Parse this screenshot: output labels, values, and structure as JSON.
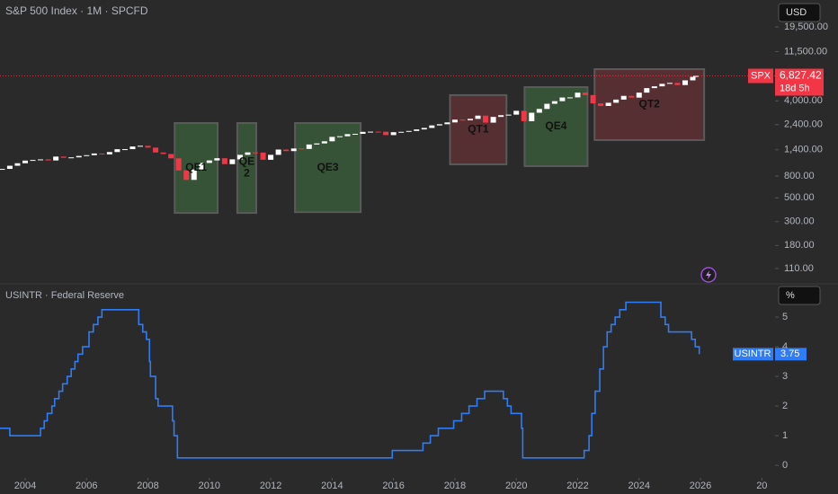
{
  "chart_data": [
    {
      "type": "candlestick",
      "title": "S&P 500 Index · 1M · SPCFD",
      "currency": "USD",
      "log_scale": true,
      "up_color": "#ffffff",
      "down_color": "#f23645",
      "xlim": [
        2003.18,
        2028.43
      ],
      "ylim": [
        80.7,
        34750
      ],
      "yticks": [
        {
          "value": 110,
          "label": "110.00"
        },
        {
          "value": 180,
          "label": "180.00"
        },
        {
          "value": 300,
          "label": "300.00"
        },
        {
          "value": 500,
          "label": "500.00"
        },
        {
          "value": 800,
          "label": "800.00"
        },
        {
          "value": 1400,
          "label": "1,400.00"
        },
        {
          "value": 2400,
          "label": "2,400.00"
        },
        {
          "value": 4000,
          "label": "4,000.00"
        },
        {
          "value": 11500,
          "label": "11,500.00"
        },
        {
          "value": 19500,
          "label": "19,500.00"
        }
      ],
      "x": [
        2003.25,
        2003.5,
        2003.75,
        2004,
        2004.25,
        2004.5,
        2004.75,
        2005,
        2005.25,
        2005.5,
        2005.75,
        2006,
        2006.25,
        2006.5,
        2006.75,
        2007,
        2007.25,
        2007.5,
        2007.75,
        2008,
        2008.25,
        2008.5,
        2008.75,
        2009,
        2009.25,
        2009.5,
        2009.75,
        2010,
        2010.25,
        2010.5,
        2010.75,
        2011,
        2011.25,
        2011.5,
        2011.75,
        2012,
        2012.25,
        2012.5,
        2012.75,
        2013,
        2013.25,
        2013.5,
        2013.75,
        2014,
        2014.25,
        2014.5,
        2014.75,
        2015,
        2015.25,
        2015.5,
        2015.75,
        2016,
        2016.25,
        2016.5,
        2016.75,
        2017,
        2017.25,
        2017.5,
        2017.75,
        2018,
        2018.25,
        2018.5,
        2018.75,
        2019,
        2019.25,
        2019.5,
        2019.75,
        2020,
        2020.25,
        2020.5,
        2020.75,
        2021,
        2021.25,
        2021.5,
        2021.75,
        2022,
        2022.25,
        2022.5,
        2022.75,
        2023,
        2023.25,
        2023.5,
        2023.75,
        2024,
        2024.25,
        2024.5,
        2024.75,
        2025,
        2025.25,
        2025.5,
        2025.75,
        2025.85
      ],
      "values": [
        930,
        995,
        1050,
        1111,
        1126,
        1140,
        1114,
        1211,
        1180,
        1191,
        1228,
        1248,
        1294,
        1270,
        1335,
        1418,
        1420,
        1503,
        1526,
        1468,
        1322,
        1280,
        1166,
        900,
        735,
        919,
        1057,
        1115,
        1169,
        1030,
        1141,
        1257,
        1325,
        1320,
        1131,
        1257,
        1408,
        1362,
        1440,
        1426,
        1569,
        1606,
        1681,
        1848,
        1872,
        1960,
        1972,
        2058,
        2067,
        2063,
        1920,
        2043,
        2059,
        2098,
        2168,
        2238,
        2362,
        2423,
        2519,
        2673,
        2640,
        2718,
        2913,
        2506,
        2834,
        2941,
        2976,
        3230,
        2584,
        3100,
        3363,
        3756,
        3972,
        4297,
        4307,
        4766,
        4530,
        3785,
        3585,
        3839,
        4109,
        4450,
        4288,
        4769,
        5254,
        5460,
        5762,
        5881,
        5611,
        6205,
        6688,
        6827.42
      ],
      "price_label": {
        "name": "SPX",
        "value": 6827.42,
        "label": "6,827.42",
        "countdown": "18d 5h"
      },
      "regions": [
        {
          "label": [
            "QE1"
          ],
          "x": [
            2008.87,
            2010.27
          ],
          "y": [
            362,
            2485
          ],
          "color": "#3a5a3a"
        },
        {
          "label": [
            "QE",
            "2"
          ],
          "x": [
            2010.91,
            2011.53
          ],
          "y": [
            362,
            2485
          ],
          "color": "#3a5a3a"
        },
        {
          "label": [
            "QE3"
          ],
          "x": [
            2012.79,
            2014.93
          ],
          "y": [
            368,
            2485
          ],
          "color": "#3a5a3a"
        },
        {
          "label": [
            "QT1"
          ],
          "x": [
            2017.84,
            2019.68
          ],
          "y": [
            1026,
            4520
          ],
          "color": "#5e3034"
        },
        {
          "label": [
            "QE4"
          ],
          "x": [
            2020.27,
            2022.32
          ],
          "y": [
            987,
            5370
          ],
          "color": "#3a5a3a"
        },
        {
          "label": [
            "QT2"
          ],
          "x": [
            2022.55,
            2026.12
          ],
          "y": [
            1725,
            7890
          ],
          "color": "#5e3034"
        }
      ]
    },
    {
      "type": "line",
      "title": "USINTR · Federal Reserve",
      "unit": "%",
      "xlim": [
        2003.18,
        2028.43
      ],
      "xticks": [
        2004,
        2006,
        2008,
        2010,
        2012,
        2014,
        2016,
        2018,
        2020,
        2022,
        2024,
        2026,
        {
          "value": 2028,
          "label": "20"
        }
      ],
      "ylim": [
        -0.36,
        6
      ],
      "yticks": [
        0,
        1,
        2,
        3,
        4,
        5
      ],
      "series": [
        {
          "name": "USINTR",
          "color": "#2f7cf6",
          "x": [
            2003.18,
            2003.5,
            2004.5,
            2004.62,
            2004.72,
            2004.87,
            2004.96,
            2005.1,
            2005.22,
            2005.37,
            2005.5,
            2005.62,
            2005.72,
            2005.87,
            2006.08,
            2006.22,
            2006.37,
            2006.5,
            2007.7,
            2007.83,
            2007.95,
            2008.05,
            2008.08,
            2008.25,
            2008.33,
            2008.8,
            2008.85,
            2008.96,
            2015.96,
            2016.96,
            2017.2,
            2017.46,
            2017.96,
            2018.22,
            2018.46,
            2018.72,
            2018.97,
            2019.58,
            2019.71,
            2019.83,
            2020.17,
            2020.21,
            2022.21,
            2022.37,
            2022.46,
            2022.57,
            2022.72,
            2022.84,
            2022.96,
            2023.09,
            2023.22,
            2023.37,
            2023.57,
            2024.71,
            2024.85,
            2024.96,
            2025.71,
            2025.83,
            2025.96
          ],
          "values": [
            1.25,
            1.0,
            1.25,
            1.5,
            1.75,
            2.0,
            2.25,
            2.5,
            2.75,
            3.0,
            3.25,
            3.5,
            3.75,
            4.0,
            4.5,
            4.75,
            5.0,
            5.25,
            4.75,
            4.5,
            4.25,
            3.5,
            3.0,
            2.25,
            2.0,
            1.5,
            1.0,
            0.25,
            0.5,
            0.75,
            1.0,
            1.25,
            1.5,
            1.75,
            2.0,
            2.25,
            2.5,
            2.25,
            2.0,
            1.75,
            1.25,
            0.25,
            0.5,
            1.0,
            1.75,
            2.5,
            3.25,
            4.0,
            4.5,
            4.75,
            5.0,
            5.25,
            5.5,
            5.0,
            4.75,
            4.5,
            4.25,
            4.0,
            3.75
          ]
        }
      ]
    }
  ]
}
